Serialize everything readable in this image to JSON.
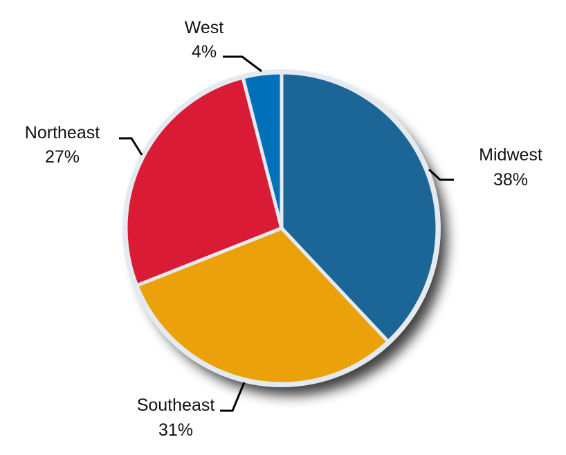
{
  "chart_data": {
    "type": "pie",
    "start": "top",
    "direction": "clockwise",
    "slices": [
      {
        "label": "Midwest",
        "value": 38,
        "value_label": "38%",
        "color": "#1b6597"
      },
      {
        "label": "Southeast",
        "value": 31,
        "value_label": "31%",
        "color": "#eba10a"
      },
      {
        "label": "Northeast",
        "value": 27,
        "value_label": "27%",
        "color": "#da1b35"
      },
      {
        "label": "West",
        "value": 4,
        "value_label": "4%",
        "color": "#0070b9"
      }
    ],
    "border_color": "#e3ebf1",
    "legend": "none"
  }
}
